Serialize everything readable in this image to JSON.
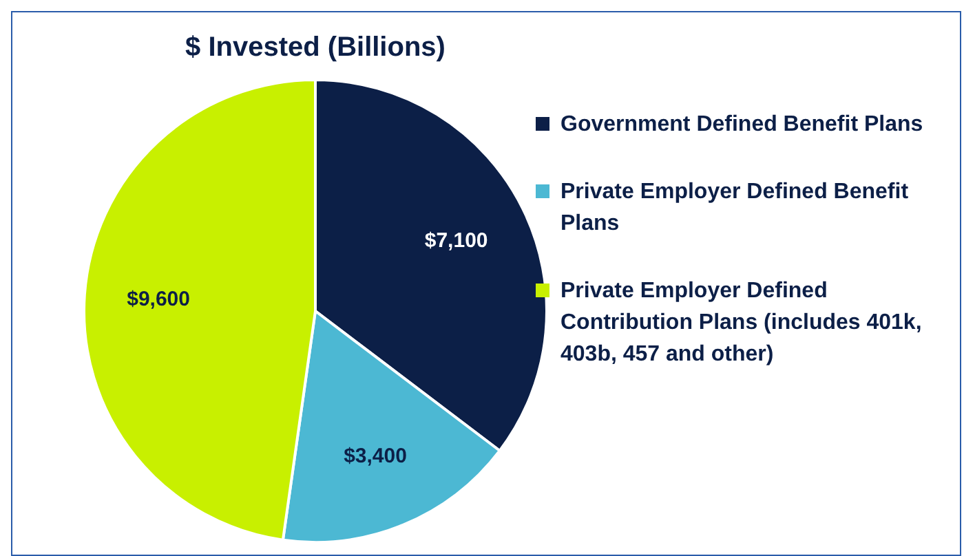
{
  "chart_data": {
    "type": "pie",
    "title": "$ Invested (Billions)",
    "categories": [
      "Government Defined Benefit Plans",
      "Private Employer Defined Benefit Plans",
      "Private Employer Defined Contribution Plans (includes 401k, 403b, 457 and other)"
    ],
    "values": [
      7100,
      3400,
      9600
    ],
    "colors": [
      "#0c1f47",
      "#4cb8d3",
      "#c8f000"
    ],
    "value_labels": [
      "$7,100",
      "$3,400",
      "$9,600"
    ],
    "legend": "right"
  }
}
